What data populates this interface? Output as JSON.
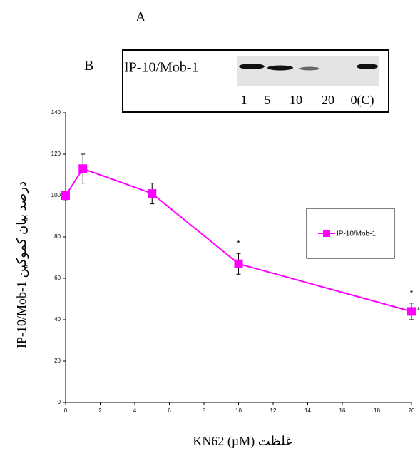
{
  "panels": [
    "A",
    "B"
  ],
  "blot": {
    "label": "IP-10/Mob-1",
    "lanes": [
      "1",
      "5",
      "10",
      "20",
      "0(C)"
    ]
  },
  "chart_data": {
    "type": "line",
    "x": [
      0,
      1,
      5,
      10,
      20
    ],
    "series": [
      {
        "name": "IP-10/Mob-1",
        "color": "#ff00ff",
        "values": [
          100,
          113,
          101,
          67,
          44
        ],
        "errors": [
          2,
          7,
          5,
          5,
          4
        ]
      }
    ],
    "xlim": [
      0,
      20
    ],
    "xticks": [
      0,
      2,
      4,
      6,
      8,
      10,
      12,
      14,
      16,
      18,
      20
    ],
    "ylim": [
      0,
      140
    ],
    "yticks": [
      0,
      20,
      40,
      60,
      80,
      100,
      120,
      140
    ],
    "ylabel": "IP-10/Mob-1 درصد بیان کموکین",
    "xlabel": "غلظت KN62 (µM)",
    "annotations": [
      "*",
      "*",
      "*"
    ],
    "legend": "right",
    "grid": false
  }
}
